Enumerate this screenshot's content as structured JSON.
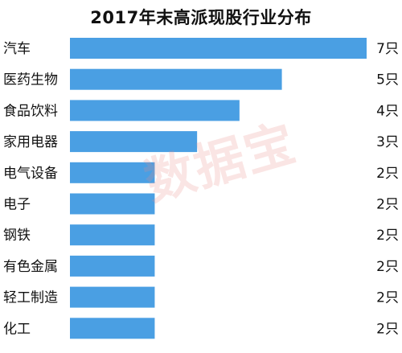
{
  "chart_data": {
    "type": "bar",
    "orientation": "horizontal",
    "title": "2017年末高派现股行业分布",
    "categories": [
      "汽车",
      "医药生物",
      "食品饮料",
      "家用电器",
      "电气设备",
      "电子",
      "钢铁",
      "有色金属",
      "轻工制造",
      "化工"
    ],
    "values": [
      7,
      5,
      4,
      3,
      2,
      2,
      2,
      2,
      2,
      2
    ],
    "value_labels": [
      "7只",
      "5只",
      "4只",
      "3只",
      "2只",
      "2只",
      "2只",
      "2只",
      "2只",
      "2只"
    ],
    "xlim": [
      0,
      7
    ],
    "grid": false,
    "legend": "none",
    "bar_color": "#4a9fe3"
  },
  "watermark": "数据宝"
}
